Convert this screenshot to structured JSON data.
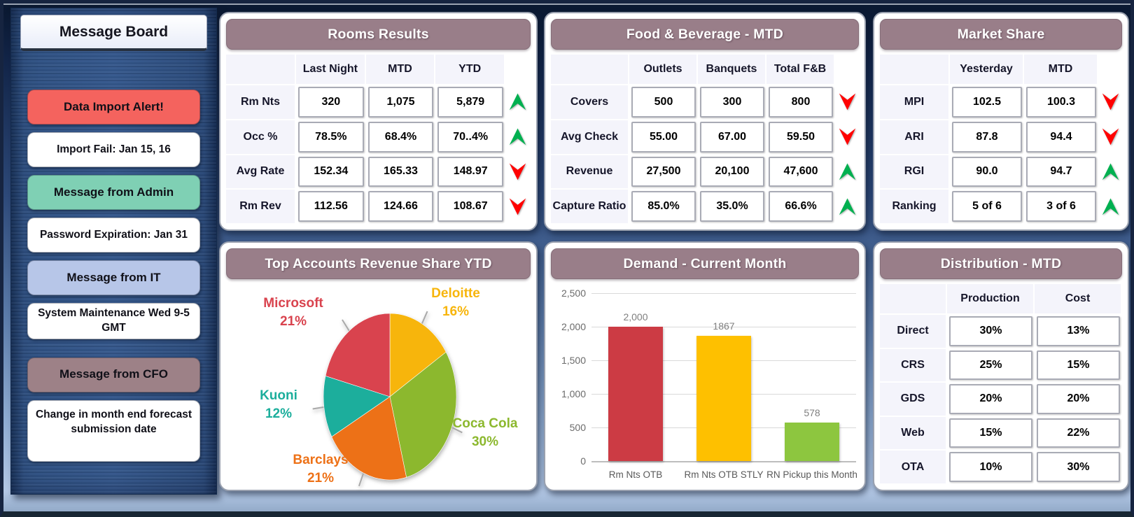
{
  "message_board": {
    "title": "Message Board",
    "items": [
      {
        "label": "Data Import Alert!",
        "style": "alert"
      },
      {
        "label": "Import Fail: Jan 15, 16",
        "style": "plain"
      },
      {
        "label": "Message from Admin",
        "style": "admin"
      },
      {
        "label": "Password Expiration: Jan 31",
        "style": "plain"
      },
      {
        "label": "Message from IT",
        "style": "it"
      },
      {
        "label": "System Maintenance Wed 9-5 GMT",
        "style": "plain"
      },
      {
        "label": "Message from CFO",
        "style": "cfo"
      },
      {
        "label": "Change in month end forecast submission date",
        "style": "plain",
        "size": "lg"
      }
    ],
    "colors": {
      "alert": "#F4635E",
      "admin": "#7FD0B4",
      "it": "#B7C6E8",
      "cfo": "#9D8187",
      "plain": "#FFFFFF"
    }
  },
  "panels": {
    "rooms": {
      "title": "Rooms Results",
      "columns": [
        "Last Night",
        "MTD",
        "YTD"
      ],
      "rows": [
        {
          "label": "Rm Nts",
          "values": [
            "320",
            "1,075",
            "5,879"
          ],
          "trend": "up"
        },
        {
          "label": "Occ %",
          "values": [
            "78.5%",
            "68.4%",
            "70..4%"
          ],
          "trend": "up"
        },
        {
          "label": "Avg Rate",
          "values": [
            "152.34",
            "165.33",
            "148.97"
          ],
          "trend": "down"
        },
        {
          "label": "Rm Rev",
          "values": [
            "112.56",
            "124.66",
            "108.67"
          ],
          "trend": "down"
        }
      ]
    },
    "fnb": {
      "title": "Food & Beverage - MTD",
      "columns": [
        "Outlets",
        "Banquets",
        "Total F&B"
      ],
      "rows": [
        {
          "label": "Covers",
          "values": [
            "500",
            "300",
            "800"
          ],
          "trend": "down"
        },
        {
          "label": "Avg Check",
          "values": [
            "55.00",
            "67.00",
            "59.50"
          ],
          "trend": "down"
        },
        {
          "label": "Revenue",
          "values": [
            "27,500",
            "20,100",
            "47,600"
          ],
          "trend": "up"
        },
        {
          "label": "Capture Ratio",
          "values": [
            "85.0%",
            "35.0%",
            "66.6%"
          ],
          "trend": "up"
        }
      ]
    },
    "market": {
      "title": "Market Share",
      "columns": [
        "Yesterday",
        "MTD"
      ],
      "rows": [
        {
          "label": "MPI",
          "values": [
            "102.5",
            "100.3"
          ],
          "trend": "down"
        },
        {
          "label": "ARI",
          "values": [
            "87.8",
            "94.4"
          ],
          "trend": "down"
        },
        {
          "label": "RGI",
          "values": [
            "90.0",
            "94.7"
          ],
          "trend": "up"
        },
        {
          "label": "Ranking",
          "values": [
            "5 of 6",
            "3 of 6"
          ],
          "trend": "up"
        }
      ]
    },
    "distribution": {
      "title": "Distribution - MTD",
      "columns": [
        "Production",
        "Cost"
      ],
      "rows": [
        {
          "label": "Direct",
          "values": [
            "30%",
            "13%"
          ]
        },
        {
          "label": "CRS",
          "values": [
            "25%",
            "15%"
          ]
        },
        {
          "label": "GDS",
          "values": [
            "20%",
            "20%"
          ]
        },
        {
          "label": "Web",
          "values": [
            "15%",
            "22%"
          ]
        },
        {
          "label": "OTA",
          "values": [
            "10%",
            "30%"
          ]
        }
      ]
    }
  },
  "chart_data": [
    {
      "type": "pie",
      "title": "Top Accounts Revenue Share YTD",
      "start_angle": "12 o'clock, clockwise",
      "legend_position": "callout labels around pie",
      "slices": [
        {
          "label": "Deloitte",
          "value": 16,
          "pct": "16%",
          "color": "#F7B50C"
        },
        {
          "label": "Coca Cola",
          "value": 30,
          "pct": "30%",
          "color": "#8CB82E"
        },
        {
          "label": "Barclays",
          "value": 21,
          "pct": "21%",
          "color": "#ED7117"
        },
        {
          "label": "Kuoni",
          "value": 12,
          "pct": "12%",
          "color": "#1CAE9C"
        },
        {
          "label": "Microsoft",
          "value": 21,
          "pct": "21%",
          "color": "#D9434E"
        }
      ]
    },
    {
      "type": "bar",
      "title": "Demand - Current Month",
      "categories": [
        "Rm Nts OTB",
        "Rm Nts OTB STLY",
        "RN Pickup this Month"
      ],
      "values": [
        2000,
        1867,
        578
      ],
      "value_labels": [
        "2,000",
        "1867",
        "578"
      ],
      "colors": [
        "#CC3B44",
        "#FEC000",
        "#8DC63F"
      ],
      "ylim": [
        0,
        2500
      ],
      "yticks": [
        "2,500",
        "2,000",
        "1,500",
        "1,000",
        "500",
        "0"
      ],
      "grid": "horizontal gridlines on",
      "xlabel": "",
      "ylabel": ""
    }
  ],
  "trend_colors": {
    "up": "#00B050",
    "down": "#FF0000"
  },
  "theme": {
    "panel_header": "#997E89",
    "background_top": "#0A1830",
    "background_bottom": "#B3C8E6",
    "sidebar_denim": "#2F5183"
  }
}
